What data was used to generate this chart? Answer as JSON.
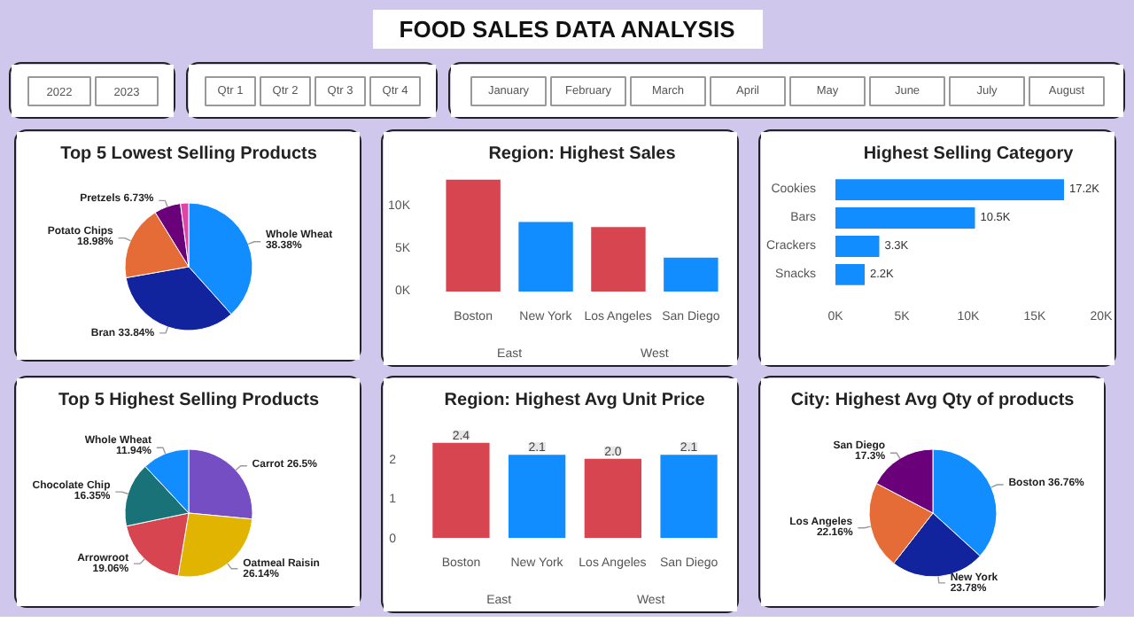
{
  "chart_data": [
    {
      "type": "other",
      "title": "FOOD SALES DATA ANALYSIS"
    },
    {
      "type": "other",
      "annotations": [
        "2022",
        "2023"
      ]
    },
    {
      "type": "other",
      "annotations": [
        "Qtr 1",
        "Qtr 2",
        "Qtr 3",
        "Qtr 4"
      ]
    },
    {
      "type": "other",
      "annotations": [
        "January",
        "February",
        "March",
        "April",
        "May",
        "June",
        "July",
        "August"
      ]
    },
    {
      "type": "pie",
      "title": "Top 5 Lowest Selling Products",
      "categories": [
        "Whole Wheat",
        "Bran",
        "Potato Chips",
        "Pretzels",
        null
      ],
      "values": [
        38.38,
        33.84,
        18.98,
        6.73,
        2.07
      ],
      "value_labels": [
        "38.38%",
        "33.84%",
        "18.98%",
        "6.73%",
        null
      ],
      "colors": [
        "#118dff",
        "#12239e",
        "#e66c37",
        "#6b007b",
        "#e044a7"
      ]
    },
    {
      "type": "bar",
      "title": "Region: Highest Sales",
      "categories": [
        "Boston",
        "New York",
        "Los Angeles",
        "San Diego"
      ],
      "values": [
        13200,
        8200,
        7600,
        4000
      ],
      "colors": [
        "#d64550",
        "#118dff",
        "#d64550",
        "#118dff"
      ],
      "ylim": [
        0,
        14000
      ],
      "yticks": [
        {
          "value": 0,
          "label": "0K"
        },
        {
          "value": 5000,
          "label": "5K"
        },
        {
          "value": 10000,
          "label": "10K"
        }
      ],
      "annotations": [
        "East",
        "West"
      ]
    },
    {
      "type": "bar",
      "orientation": "horizontal",
      "title": "Highest Selling Category",
      "categories": [
        "Cookies",
        "Bars",
        "Crackers",
        "Snacks"
      ],
      "values": [
        17200,
        10500,
        3300,
        2200
      ],
      "value_labels": [
        "17.2K",
        "10.5K",
        "3.3K",
        "2.2K"
      ],
      "color": "#118dff",
      "xlim": [
        0,
        20000
      ],
      "xticks": [
        {
          "value": 0,
          "label": "0K"
        },
        {
          "value": 5000,
          "label": "5K"
        },
        {
          "value": 10000,
          "label": "10K"
        },
        {
          "value": 15000,
          "label": "15K"
        },
        {
          "value": 20000,
          "label": "20K"
        }
      ]
    },
    {
      "type": "pie",
      "title": "Top 5 Highest Selling Products",
      "categories": [
        "Carrot",
        "Oatmeal Raisin",
        "Arrowroot",
        "Chocolate Chip",
        "Whole Wheat"
      ],
      "values": [
        26.5,
        26.14,
        19.06,
        16.35,
        11.94
      ],
      "value_labels": [
        "26.5%",
        "26.14%",
        "19.06%",
        "16.35%",
        "11.94%"
      ],
      "colors": [
        "#744ec2",
        "#e0b400",
        "#d64550",
        "#197278",
        "#118dff"
      ]
    },
    {
      "type": "bar",
      "title": "Region: Highest Avg Unit Price",
      "categories": [
        "Boston",
        "New York",
        "Los Angeles",
        "San Diego"
      ],
      "values": [
        2.4,
        2.1,
        2.0,
        2.1
      ],
      "value_labels": [
        "2.4",
        "2.1",
        "2.0",
        "2.1"
      ],
      "colors": [
        "#d64550",
        "#118dff",
        "#d64550",
        "#118dff"
      ],
      "ylim": [
        0,
        3.0
      ],
      "yticks": [
        0,
        1,
        2
      ],
      "annotations": [
        "East",
        "West"
      ]
    },
    {
      "type": "pie",
      "title": "City: Highest Avg Qty of products",
      "categories": [
        "Boston",
        "New York",
        "Los Angeles",
        "San Diego"
      ],
      "values": [
        36.76,
        23.78,
        22.16,
        17.3
      ],
      "value_labels": [
        "36.76%",
        "23.78%",
        "22.16%",
        "17.3%"
      ],
      "colors": [
        "#118dff",
        "#12239e",
        "#e66c37",
        "#6b007b"
      ]
    }
  ]
}
